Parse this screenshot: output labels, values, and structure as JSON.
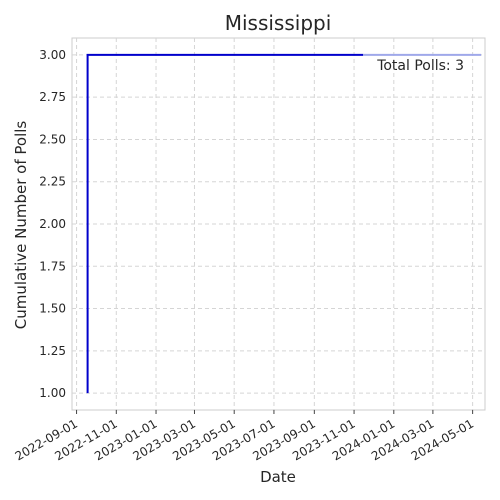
{
  "chart_data": {
    "type": "line",
    "title": "Mississippi",
    "xlabel": "Date",
    "ylabel": "Cumulative Number of Polls",
    "annotation": "Total Polls: 3",
    "x_ticks": [
      "2022-09-01",
      "2022-11-01",
      "2023-01-01",
      "2023-03-01",
      "2023-05-01",
      "2023-07-01",
      "2023-09-01",
      "2023-11-01",
      "2024-01-01",
      "2024-03-01",
      "2024-05-01"
    ],
    "y_ticks": [
      "1.00",
      "1.25",
      "1.50",
      "1.75",
      "2.00",
      "2.25",
      "2.50",
      "2.75",
      "3.00"
    ],
    "xlim": [
      "2022-08-25",
      "2024-05-20"
    ],
    "ylim": [
      0.9,
      3.1
    ],
    "grid": true,
    "series": [
      {
        "color": "#0000cc",
        "points": [
          {
            "x": "2022-09-18",
            "y": 1
          },
          {
            "x": "2022-09-18",
            "y": 2
          },
          {
            "x": "2022-09-18",
            "y": 3
          },
          {
            "x": "2023-11-15",
            "y": 3
          }
        ]
      },
      {
        "color": "#9fa8ea",
        "points": [
          {
            "x": "2023-11-15",
            "y": 3
          },
          {
            "x": "2024-05-14",
            "y": 3
          }
        ]
      }
    ]
  }
}
